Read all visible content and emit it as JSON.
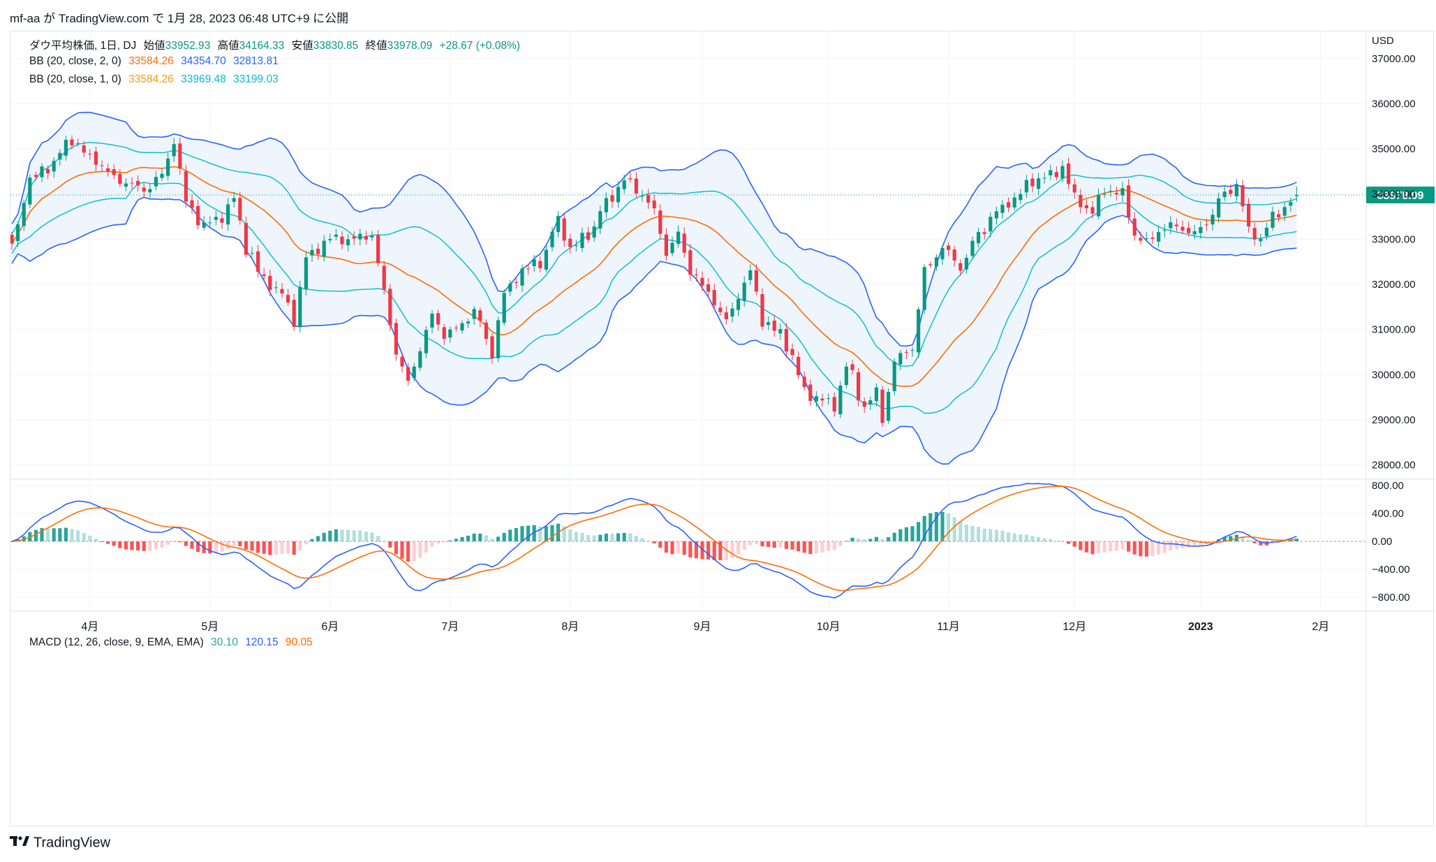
{
  "header": {
    "title": "mf-aa が TradingView.com で 1月 28, 2023 06:48 UTC+9 に公開"
  },
  "legend": {
    "symbol": "ダウ平均株価, 1日, DJ",
    "open_label": "始値",
    "open": "33952.93",
    "high_label": "高値",
    "high": "34164.33",
    "low_label": "安値",
    "low": "33830.85",
    "close_label": "終値",
    "close": "33978.09",
    "change": "+28.67 (+0.08%)",
    "bb2_label": "BB (20, close, 2, 0)",
    "bb2_mid": "33584.26",
    "bb2_upper": "34354.70",
    "bb2_lower": "32813.81",
    "bb1_label": "BB (20, close, 1, 0)",
    "bb1_mid": "33584.26",
    "bb1_upper": "33969.48",
    "bb1_lower": "33199.03",
    "macd_label": "MACD (12, 26, close, 9, EMA, EMA)",
    "macd_hist": "30.10",
    "macd_line": "120.15",
    "macd_signal": "90.05"
  },
  "footer": {
    "brand": "TradingView"
  },
  "colors": {
    "up": "#089981",
    "down": "#f23645",
    "bb2_line": "#2962ff",
    "bb1_line": "#00bcd4",
    "basis": "#ff6d00",
    "bb_fill": "#e8f2fb",
    "macd_line": "#2962ff",
    "signal_line": "#ff6d00",
    "hist_up_strong": "#26a69a",
    "hist_up_weak": "#b2dfdb",
    "hist_down_strong": "#ff5252",
    "hist_down_weak": "#ffcdd2",
    "price_tag": "#089981"
  },
  "chart_data": [
    {
      "type": "candlestick",
      "currency_label": "USD",
      "ylim": [
        27700,
        37600
      ],
      "y_ticks": [
        {
          "value": 37000,
          "label": "37000.00"
        },
        {
          "value": 36000,
          "label": "36000.00"
        },
        {
          "value": 35000,
          "label": "35000.00"
        },
        {
          "value": 34000,
          "label": "34000.00"
        },
        {
          "value": 33000,
          "label": "33000.00"
        },
        {
          "value": 32000,
          "label": "32000.00"
        },
        {
          "value": 31000,
          "label": "31000.00"
        },
        {
          "value": 30000,
          "label": "30000.00"
        },
        {
          "value": 29000,
          "label": "29000.00"
        },
        {
          "value": 28000,
          "label": "28000.00"
        }
      ],
      "last_price": 33978.09,
      "last_price_label": "33978.09",
      "x_ticks": [
        {
          "bar": 13,
          "label": "4月"
        },
        {
          "bar": 33,
          "label": "5月"
        },
        {
          "bar": 53,
          "label": "6月"
        },
        {
          "bar": 73,
          "label": "7月"
        },
        {
          "bar": 93,
          "label": "8月"
        },
        {
          "bar": 115,
          "label": "9月"
        },
        {
          "bar": 136,
          "label": "10月"
        },
        {
          "bar": 156,
          "label": "11月"
        },
        {
          "bar": 177,
          "label": "12月"
        },
        {
          "bar": 198,
          "label": "2023"
        },
        {
          "bar": 218,
          "label": "2月"
        }
      ],
      "n_slots": 225,
      "close_anchors": [
        [
          0,
          32900
        ],
        [
          3,
          34300
        ],
        [
          6,
          34600
        ],
        [
          10,
          35200
        ],
        [
          13,
          34800
        ],
        [
          18,
          34300
        ],
        [
          22,
          34100
        ],
        [
          25,
          34400
        ],
        [
          27,
          35200
        ],
        [
          29,
          33800
        ],
        [
          32,
          33300
        ],
        [
          35,
          33500
        ],
        [
          37,
          33900
        ],
        [
          39,
          32800
        ],
        [
          42,
          32100
        ],
        [
          45,
          31800
        ],
        [
          47,
          31200
        ],
        [
          49,
          32600
        ],
        [
          53,
          33000
        ],
        [
          57,
          33000
        ],
        [
          60,
          33100
        ],
        [
          62,
          31800
        ],
        [
          64,
          30500
        ],
        [
          66,
          29800
        ],
        [
          68,
          30600
        ],
        [
          70,
          31300
        ],
        [
          72,
          30900
        ],
        [
          74,
          31000
        ],
        [
          77,
          31400
        ],
        [
          80,
          30500
        ],
        [
          82,
          31800
        ],
        [
          85,
          32300
        ],
        [
          88,
          32500
        ],
        [
          91,
          33400
        ],
        [
          93,
          32800
        ],
        [
          96,
          33100
        ],
        [
          99,
          33800
        ],
        [
          102,
          34300
        ],
        [
          105,
          34000
        ],
        [
          107,
          33600
        ],
        [
          109,
          32700
        ],
        [
          111,
          33100
        ],
        [
          113,
          32300
        ],
        [
          116,
          31800
        ],
        [
          119,
          31200
        ],
        [
          122,
          32000
        ],
        [
          123,
          32300
        ],
        [
          125,
          31200
        ],
        [
          128,
          30900
        ],
        [
          130,
          30400
        ],
        [
          132,
          29600
        ],
        [
          134,
          29500
        ],
        [
          137,
          29300
        ],
        [
          139,
          30200
        ],
        [
          142,
          29300
        ],
        [
          144,
          29600
        ],
        [
          145,
          29000
        ],
        [
          147,
          30300
        ],
        [
          150,
          30600
        ],
        [
          152,
          32300
        ],
        [
          155,
          32800
        ],
        [
          158,
          32400
        ],
        [
          161,
          33100
        ],
        [
          164,
          33600
        ],
        [
          167,
          33900
        ],
        [
          170,
          34300
        ],
        [
          173,
          34400
        ],
        [
          175,
          34600
        ],
        [
          177,
          33900
        ],
        [
          180,
          33600
        ],
        [
          182,
          34100
        ],
        [
          185,
          34000
        ],
        [
          187,
          33100
        ],
        [
          189,
          32900
        ],
        [
          191,
          33200
        ],
        [
          194,
          33300
        ],
        [
          197,
          33100
        ],
        [
          199,
          33400
        ],
        [
          202,
          34000
        ],
        [
          204,
          34200
        ],
        [
          206,
          33200
        ],
        [
          208,
          33000
        ],
        [
          210,
          33500
        ],
        [
          212,
          33700
        ],
        [
          214,
          33978
        ]
      ],
      "macd": {
        "ylim": [
          -1000,
          880
        ],
        "y_ticks": [
          {
            "value": 800,
            "label": "800.00"
          },
          {
            "value": 400,
            "label": "400.00"
          },
          {
            "value": 0,
            "label": "0.00"
          },
          {
            "value": -400,
            "label": "−400.00"
          },
          {
            "value": -800,
            "label": "−800.00"
          }
        ]
      }
    }
  ]
}
